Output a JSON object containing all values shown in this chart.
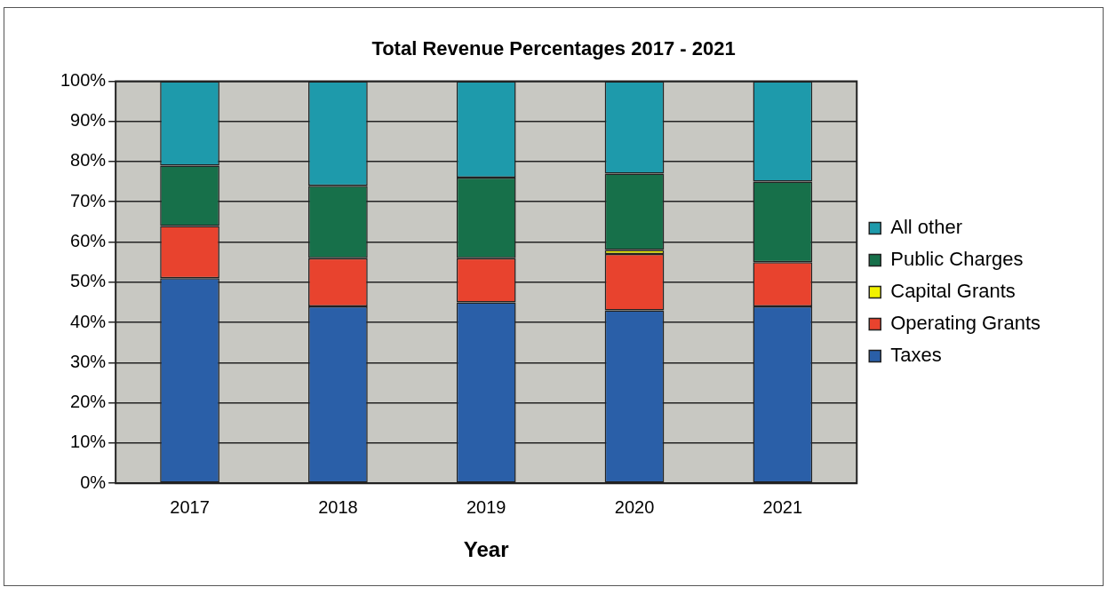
{
  "chart_data": {
    "type": "bar",
    "title": "Total Revenue Percentages 2017 - 2021",
    "xlabel": "Year",
    "categories": [
      "2017",
      "2018",
      "2019",
      "2020",
      "2021"
    ],
    "stacked": true,
    "series": [
      {
        "name": "Taxes",
        "color": "#2a5fa8",
        "values": [
          51,
          44,
          45,
          43,
          44
        ]
      },
      {
        "name": "Operating Grants",
        "color": "#e8432e",
        "values": [
          13,
          12,
          11,
          14,
          11
        ]
      },
      {
        "name": "Capital Grants",
        "color": "#f2f200",
        "values": [
          0,
          0,
          0,
          1,
          0
        ]
      },
      {
        "name": "Public Charges",
        "color": "#17704a",
        "values": [
          15,
          18,
          20,
          19,
          20
        ]
      },
      {
        "name": "All other",
        "color": "#1e9aab",
        "values": [
          21,
          26,
          24,
          23,
          25
        ]
      }
    ],
    "ylim": [
      0,
      100
    ],
    "yticks": [
      {
        "value": 0,
        "label": "0%"
      },
      {
        "value": 10,
        "label": "10%"
      },
      {
        "value": 20,
        "label": "20%"
      },
      {
        "value": 30,
        "label": "30%"
      },
      {
        "value": 40,
        "label": "40%"
      },
      {
        "value": 50,
        "label": "50%"
      },
      {
        "value": 60,
        "label": "60%"
      },
      {
        "value": 70,
        "label": "70%"
      },
      {
        "value": 80,
        "label": "80%"
      },
      {
        "value": 90,
        "label": "90%"
      },
      {
        "value": 100,
        "label": "100%"
      }
    ],
    "grid": "y",
    "legend": "right"
  }
}
